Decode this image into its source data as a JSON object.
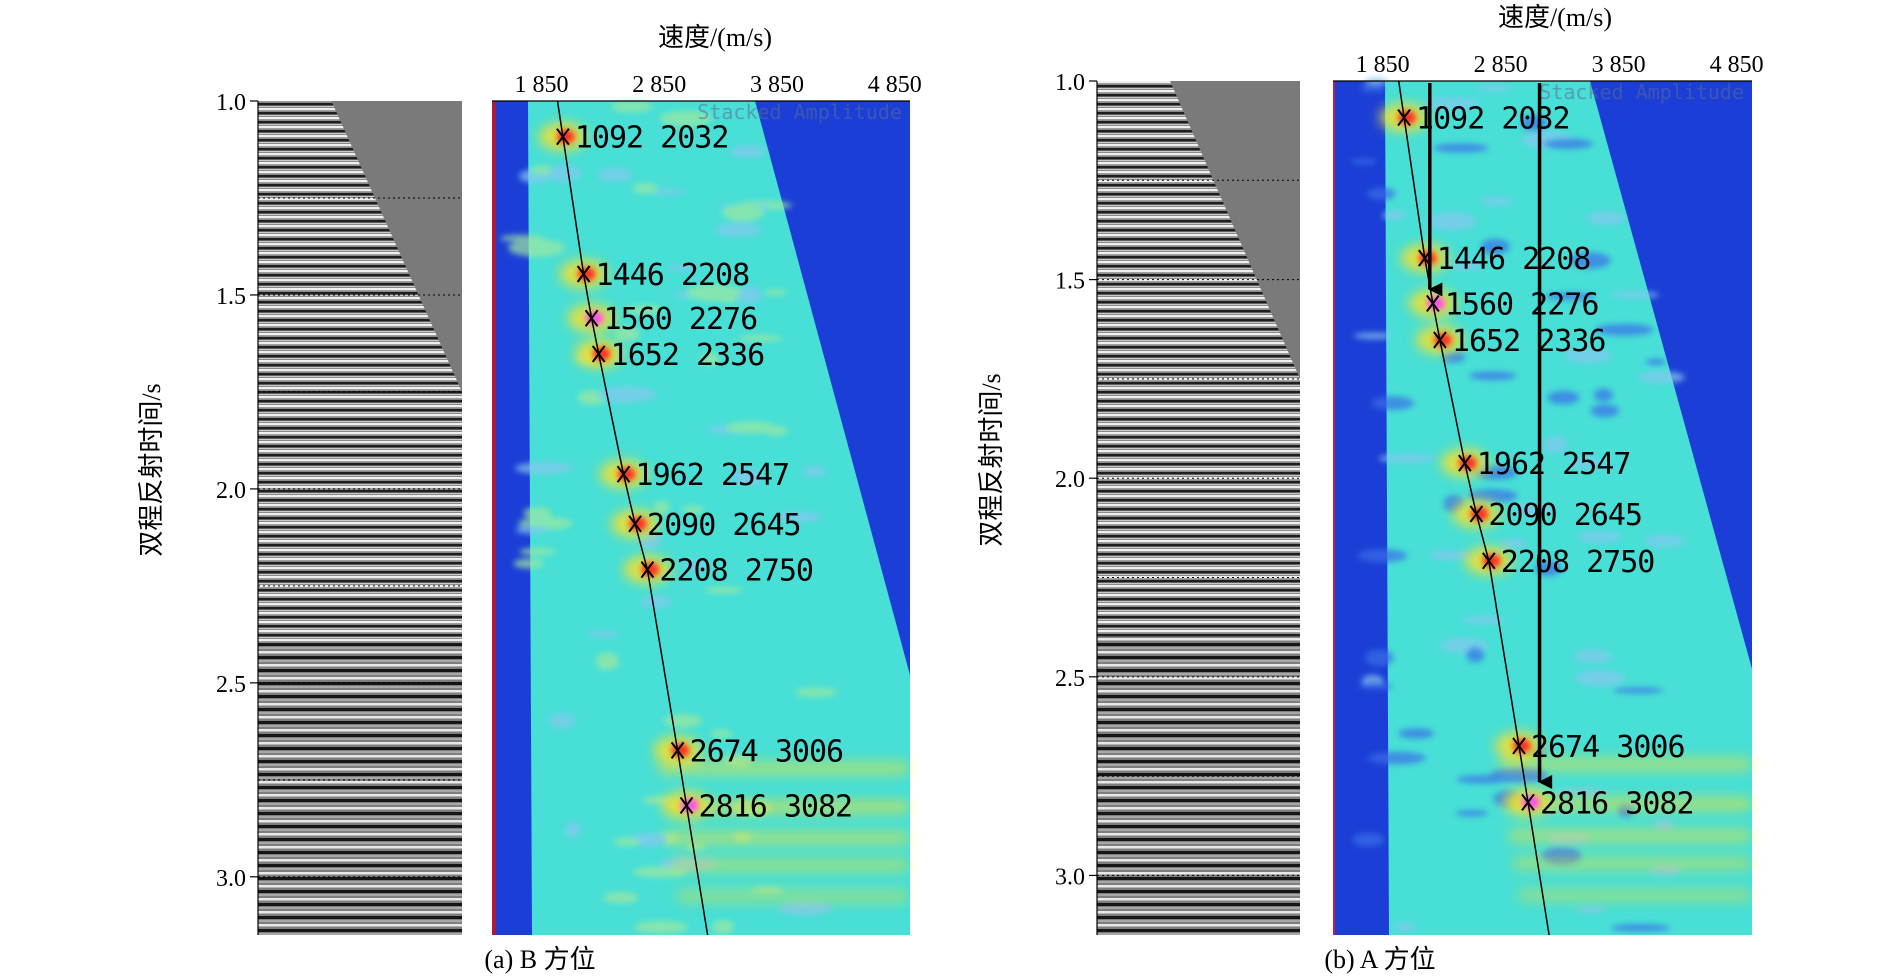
{
  "figure": {
    "colors": {
      "background_blue": "#1b3fd6",
      "spectrum_cyan": "#47dfd6",
      "spectrum_lightblue": "#86c8f0",
      "spectrum_yellow": "#f2e030",
      "spectrum_red": "#ff2020",
      "spectrum_magenta": "#ff40ff",
      "gather_gray": "#7a7a7a",
      "red_marker": "#d01010"
    }
  },
  "chart_data": [
    {
      "type": "scatter",
      "panel": "a",
      "caption": "(a) B 方位",
      "xlabel": "速度/(m/s)",
      "ylabel": "双程反射时间/s",
      "watermark": "Stacked Amplitude",
      "x_ticks": [
        "1 850",
        "2 850",
        "3 850",
        "4 850"
      ],
      "x_tick_values": [
        1850,
        2850,
        3850,
        4850
      ],
      "xlim": [
        1430,
        4980
      ],
      "y_ticks": [
        "1.0",
        "1.5",
        "2.0",
        "2.5",
        "3.0"
      ],
      "y_tick_values": [
        1.0,
        1.5,
        2.0,
        2.5,
        3.0
      ],
      "ylim": [
        1.0,
        3.15
      ],
      "picks": [
        {
          "time_ms": 1092,
          "velocity": 2032,
          "label": "1092 2032"
        },
        {
          "time_ms": 1446,
          "velocity": 2208,
          "label": "1446 2208"
        },
        {
          "time_ms": 1560,
          "velocity": 2276,
          "label": "1560 2276"
        },
        {
          "time_ms": 1652,
          "velocity": 2336,
          "label": "1652 2336"
        },
        {
          "time_ms": 1962,
          "velocity": 2547,
          "label": "1962 2547"
        },
        {
          "time_ms": 2090,
          "velocity": 2645,
          "label": "2090 2645"
        },
        {
          "time_ms": 2208,
          "velocity": 2750,
          "label": "2208 2750"
        },
        {
          "time_ms": 2674,
          "velocity": 3006,
          "label": "2674 3006"
        },
        {
          "time_ms": 2816,
          "velocity": 3082,
          "label": "2816 3082"
        }
      ],
      "arrows": []
    },
    {
      "type": "scatter",
      "panel": "b",
      "caption": "(b) A 方位",
      "xlabel": "速度/(m/s)",
      "ylabel": "双程反射时间/s",
      "watermark": "Stacked Amplitude",
      "x_ticks": [
        "1 850",
        "2 850",
        "3 850",
        "4 850"
      ],
      "x_tick_values": [
        1850,
        2850,
        3850,
        4850
      ],
      "xlim": [
        1430,
        4980
      ],
      "y_ticks": [
        "1.0",
        "1.5",
        "2.0",
        "2.5",
        "3.0"
      ],
      "y_tick_values": [
        1.0,
        1.5,
        2.0,
        2.5,
        3.0
      ],
      "ylim": [
        1.0,
        3.15
      ],
      "picks": [
        {
          "time_ms": 1092,
          "velocity": 2032,
          "label": "1092 2032"
        },
        {
          "time_ms": 1446,
          "velocity": 2208,
          "label": "1446 2208"
        },
        {
          "time_ms": 1560,
          "velocity": 2276,
          "label": "1560 2276"
        },
        {
          "time_ms": 1652,
          "velocity": 2336,
          "label": "1652 2336"
        },
        {
          "time_ms": 1962,
          "velocity": 2547,
          "label": "1962 2547"
        },
        {
          "time_ms": 2090,
          "velocity": 2645,
          "label": "2090 2645"
        },
        {
          "time_ms": 2208,
          "velocity": 2750,
          "label": "2208 2750"
        },
        {
          "time_ms": 2674,
          "velocity": 3006,
          "label": "2674 3006"
        },
        {
          "time_ms": 2816,
          "velocity": 3082,
          "label": "2816 3082"
        }
      ],
      "arrows": [
        {
          "velocity": 2250,
          "time_from": 1.0,
          "time_to": 1.56
        },
        {
          "velocity": 3180,
          "time_from": 1.0,
          "time_to": 2.8
        }
      ]
    }
  ]
}
